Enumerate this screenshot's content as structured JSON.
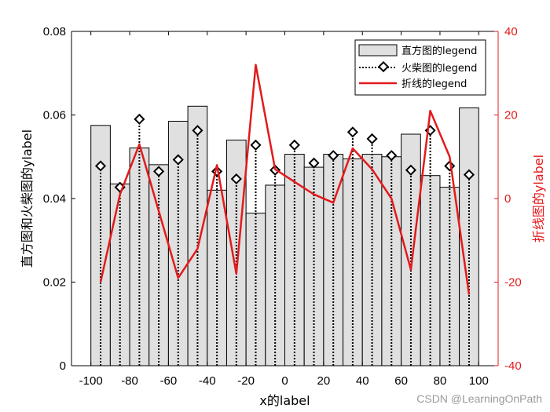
{
  "chart_data": {
    "type": "bar",
    "title": "",
    "xlabel": "x的label",
    "ylabel_left": "直方图和火柴图的ylabel",
    "ylabel_right": "折线图的ylabel",
    "xlim": [
      -110,
      110
    ],
    "ylim_left": [
      0,
      0.08
    ],
    "ylim_right": [
      -40,
      40
    ],
    "x_ticks": [
      -100,
      -80,
      -60,
      -40,
      -20,
      0,
      20,
      40,
      60,
      80,
      100
    ],
    "y_left_ticks": [
      0,
      0.02,
      0.04,
      0.06,
      0.08
    ],
    "y_left_tick_labels": [
      "0",
      "0.02",
      "0.04",
      "0.06",
      "0.08"
    ],
    "y_right_ticks": [
      -40,
      -20,
      0,
      20,
      40
    ],
    "grid": false,
    "legend_position": "top-right",
    "x": [
      -95,
      -85,
      -75,
      -65,
      -55,
      -45,
      -35,
      -25,
      -15,
      -5,
      5,
      15,
      25,
      35,
      45,
      55,
      65,
      75,
      85,
      95
    ],
    "series": [
      {
        "name": "直方图的legend",
        "kind": "histogram",
        "axis": "left",
        "values": [
          0.0575,
          0.0435,
          0.0521,
          0.0481,
          0.0585,
          0.0621,
          0.042,
          0.054,
          0.0365,
          0.0432,
          0.0506,
          0.0475,
          0.0506,
          0.0495,
          0.0506,
          0.05,
          0.0554,
          0.0455,
          0.0427,
          0.0617
        ]
      },
      {
        "name": "火柴图的legend",
        "kind": "stem",
        "axis": "left",
        "values": [
          0.0478,
          0.0427,
          0.059,
          0.0465,
          0.0493,
          0.0563,
          0.0465,
          0.0447,
          0.0528,
          0.0468,
          0.0528,
          0.0485,
          0.0503,
          0.0559,
          0.0543,
          0.0503,
          0.0468,
          0.0563,
          0.0478,
          0.0457
        ]
      },
      {
        "name": "折线的legend",
        "kind": "line",
        "axis": "right",
        "values": [
          -20,
          1,
          13,
          -3,
          -19,
          -12,
          8,
          -18,
          32,
          7,
          4,
          1,
          -1,
          12,
          7,
          0,
          -17,
          21,
          10,
          -23
        ]
      }
    ],
    "colors": {
      "bar_fill": "#e0e0e0",
      "bar_edge": "#000000",
      "stem": "#000000",
      "line": "#e31a1c",
      "right_axis": "#e31a1c",
      "left_axis": "#000000"
    }
  },
  "watermark": "CSDN @LearningOnPath"
}
